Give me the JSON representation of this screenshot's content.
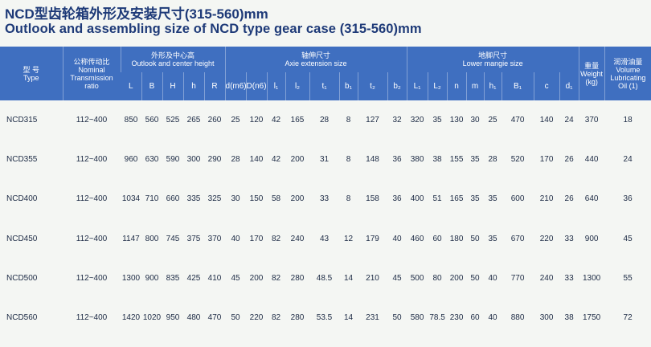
{
  "title_cn": "NCD型齿轮箱外形及安装尺寸(315-560)mm",
  "title_en": "Outlook and assembling size of NCD type gear case (315-560)mm",
  "headers": {
    "type_cn": "型 号",
    "type_en": "Type",
    "ratio_cn": "公称传动比",
    "ratio_en": "Nominal Transmission ratio",
    "outlook_cn": "外形及中心高",
    "outlook_en": "Outlook and center height",
    "axie_cn": "轴伸尺寸",
    "axie_en": "Axie extension size",
    "lower_cn": "地脚尺寸",
    "lower_en": "Lower mangie size",
    "weight_cn": "重量",
    "weight_en": "Weight (kg)",
    "oil_cn": "润滑油量",
    "oil_en": "Volume Lubricating Oil (1)"
  },
  "subheaders": [
    "L",
    "B",
    "H",
    "h",
    "R",
    "d(m6)",
    "D(n6)",
    "l₁",
    "l₂",
    "t₁",
    "b₁",
    "t₂",
    "b₂",
    "L₁",
    "L₂",
    "n",
    "m",
    "h₁",
    "B₁",
    "c",
    "d₁"
  ],
  "rows": [
    [
      "NCD315",
      "112~400",
      "850",
      "560",
      "525",
      "265",
      "260",
      "25",
      "120",
      "42",
      "165",
      "28",
      "8",
      "127",
      "32",
      "320",
      "35",
      "130",
      "30",
      "25",
      "470",
      "140",
      "24",
      "370",
      "18"
    ],
    [
      "NCD355",
      "112~400",
      "960",
      "630",
      "590",
      "300",
      "290",
      "28",
      "140",
      "42",
      "200",
      "31",
      "8",
      "148",
      "36",
      "380",
      "38",
      "155",
      "35",
      "28",
      "520",
      "170",
      "26",
      "440",
      "24"
    ],
    [
      "NCD400",
      "112~400",
      "1034",
      "710",
      "660",
      "335",
      "325",
      "30",
      "150",
      "58",
      "200",
      "33",
      "8",
      "158",
      "36",
      "400",
      "51",
      "165",
      "35",
      "35",
      "600",
      "210",
      "26",
      "640",
      "36"
    ],
    [
      "NCD450",
      "112~400",
      "1147",
      "800",
      "745",
      "375",
      "370",
      "40",
      "170",
      "82",
      "240",
      "43",
      "12",
      "179",
      "40",
      "460",
      "60",
      "180",
      "50",
      "35",
      "670",
      "220",
      "33",
      "900",
      "45"
    ],
    [
      "NCD500",
      "112~400",
      "1300",
      "900",
      "835",
      "425",
      "410",
      "45",
      "200",
      "82",
      "280",
      "48.5",
      "14",
      "210",
      "45",
      "500",
      "80",
      "200",
      "50",
      "40",
      "770",
      "240",
      "33",
      "1300",
      "55"
    ],
    [
      "NCD560",
      "112~400",
      "1420",
      "1020",
      "950",
      "480",
      "470",
      "50",
      "220",
      "82",
      "280",
      "53.5",
      "14",
      "231",
      "50",
      "580",
      "78.5",
      "230",
      "60",
      "40",
      "880",
      "300",
      "38",
      "1750",
      "72"
    ]
  ]
}
